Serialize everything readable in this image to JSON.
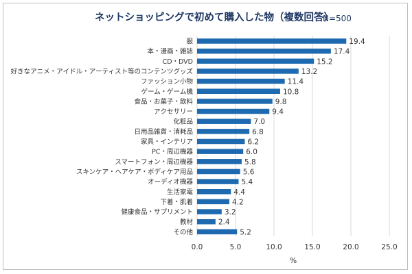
{
  "chart_data": {
    "type": "bar",
    "orientation": "horizontal",
    "title": "ネットショッピングで初めて購入した物（複数回答）",
    "note": "N=500",
    "categories": [
      "服",
      "本・漫画・雑誌",
      "CD・DVD",
      "好きなアニメ・アイドル・アーティスト等のコンテンツグッズ",
      "ファッション小物",
      "ゲーム・ゲーム機",
      "食品・お菓子・飲料",
      "アクセサリー",
      "化粧品",
      "日用品雑貨・消耗品",
      "家具・インテリア",
      "PC・周辺機器",
      "スマートフォン・周辺機器",
      "スキンケア・ヘアケア・ボディケア用品",
      "オーディオ機器",
      "生活家電",
      "下着・肌着",
      "健康食品・サプリメント",
      "教材",
      "その他"
    ],
    "values": [
      19.4,
      17.4,
      15.2,
      13.2,
      11.4,
      10.8,
      9.8,
      9.4,
      7.0,
      6.8,
      6.2,
      6.0,
      5.8,
      5.6,
      5.4,
      4.4,
      4.2,
      3.2,
      2.4,
      5.2
    ],
    "value_labels": [
      "19.4",
      "17.4",
      "15.2",
      "13.2",
      "11.4",
      "10.8",
      "9.8",
      "9.4",
      "7.0",
      "6.8",
      "6.2",
      "6.0",
      "5.8",
      "5.6",
      "5.4",
      "4.4",
      "4.2",
      "3.2",
      "2.4",
      "5.2"
    ],
    "xlim": [
      0,
      25
    ],
    "xticks": [
      "0.0",
      "5.0",
      "10.0",
      "15.0",
      "20.0",
      "25.0"
    ],
    "xlabel": "%",
    "grid": "vertical",
    "bar_color": "#1e6ab0"
  }
}
